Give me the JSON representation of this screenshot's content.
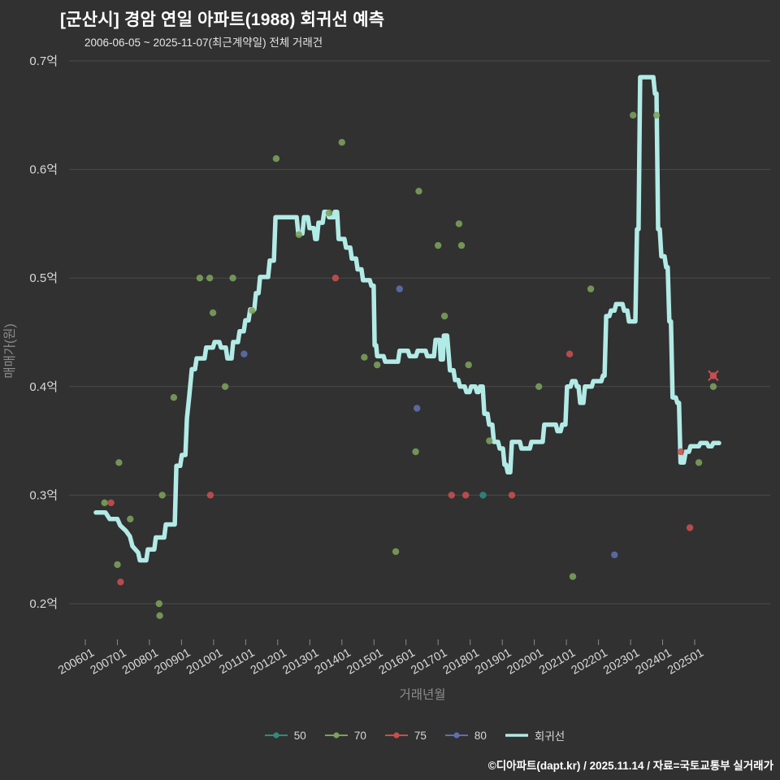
{
  "footer": "©디아파트(dapt.kr) / 2025.11.14 / 자료=국토교통부 실거래가",
  "chart_data": {
    "type": "line+scatter",
    "title": "[군산시] 경암 연일 아파트(1988) 회귀선 예측",
    "subtitle": "2006-06-05 ~ 2025-11-07(최근계약일) 전체 거래건",
    "xlabel": "거래년월",
    "ylabel": "매매가(원)",
    "y_unit": "억원",
    "x_unit": "decimal-year",
    "x_ticks": [
      "200601",
      "200701",
      "200801",
      "200901",
      "201001",
      "201101",
      "201201",
      "201301",
      "201401",
      "201501",
      "201601",
      "201701",
      "201801",
      "201901",
      "202001",
      "202101",
      "202201",
      "202301",
      "202401",
      "202501"
    ],
    "y_ticks": [
      "0.2억",
      "0.3억",
      "0.4억",
      "0.5억",
      "0.6억",
      "0.7억"
    ],
    "y_tick_values": [
      0.2,
      0.3,
      0.4,
      0.5,
      0.6,
      0.7
    ],
    "xlim": [
      2005.5,
      2026.35
    ],
    "ylim": [
      0.165,
      0.705
    ],
    "grid": "horizontal-only",
    "legend_position": "bottom-center",
    "colors": {
      "background": "#313131",
      "grid": "#4b4b4b",
      "tick": "#8a8a8a",
      "tick_label": "#d9d9d9",
      "axis_title": "#8c8c8c",
      "title": "#ffffff",
      "footer": "#ffffff"
    },
    "legend": [
      {
        "label": "50",
        "color": "#2e8b80",
        "type": "scatter"
      },
      {
        "label": "70",
        "color": "#7ca05c",
        "type": "scatter"
      },
      {
        "label": "75",
        "color": "#c94f4e",
        "type": "scatter"
      },
      {
        "label": "80",
        "color": "#5f6fae",
        "type": "scatter"
      },
      {
        "label": "회귀선",
        "color": "#b2eae6",
        "type": "line"
      }
    ],
    "regression": {
      "name": "회귀선",
      "color": "#b2eae6",
      "points": [
        [
          2006.33,
          0.284
        ],
        [
          2006.63,
          0.284
        ],
        [
          2006.76,
          0.278
        ],
        [
          2007.0,
          0.278
        ],
        [
          2007.09,
          0.272
        ],
        [
          2007.27,
          0.267
        ],
        [
          2007.39,
          0.262
        ],
        [
          2007.47,
          0.253
        ],
        [
          2007.65,
          0.247
        ],
        [
          2007.7,
          0.24
        ],
        [
          2007.9,
          0.24
        ],
        [
          2007.95,
          0.25
        ],
        [
          2008.15,
          0.25
        ],
        [
          2008.2,
          0.261
        ],
        [
          2008.46,
          0.261
        ],
        [
          2008.51,
          0.273
        ],
        [
          2008.79,
          0.273
        ],
        [
          2008.84,
          0.327
        ],
        [
          2008.96,
          0.327
        ],
        [
          2009.01,
          0.337
        ],
        [
          2009.12,
          0.337
        ],
        [
          2009.17,
          0.371
        ],
        [
          2009.24,
          0.391
        ],
        [
          2009.32,
          0.416
        ],
        [
          2009.42,
          0.416
        ],
        [
          2009.47,
          0.426
        ],
        [
          2009.72,
          0.426
        ],
        [
          2009.77,
          0.436
        ],
        [
          2009.98,
          0.436
        ],
        [
          2010.03,
          0.441
        ],
        [
          2010.18,
          0.441
        ],
        [
          2010.23,
          0.436
        ],
        [
          2010.38,
          0.436
        ],
        [
          2010.43,
          0.426
        ],
        [
          2010.56,
          0.426
        ],
        [
          2010.61,
          0.441
        ],
        [
          2010.76,
          0.441
        ],
        [
          2010.81,
          0.451
        ],
        [
          2010.94,
          0.451
        ],
        [
          2010.99,
          0.461
        ],
        [
          2011.09,
          0.461
        ],
        [
          2011.14,
          0.471
        ],
        [
          2011.27,
          0.471
        ],
        [
          2011.32,
          0.486
        ],
        [
          2011.4,
          0.486
        ],
        [
          2011.45,
          0.501
        ],
        [
          2011.7,
          0.501
        ],
        [
          2011.75,
          0.516
        ],
        [
          2011.88,
          0.516
        ],
        [
          2011.93,
          0.556
        ],
        [
          2012.59,
          0.556
        ],
        [
          2012.64,
          0.541
        ],
        [
          2012.77,
          0.541
        ],
        [
          2012.82,
          0.556
        ],
        [
          2012.94,
          0.556
        ],
        [
          2012.99,
          0.546
        ],
        [
          2013.12,
          0.546
        ],
        [
          2013.17,
          0.536
        ],
        [
          2013.22,
          0.536
        ],
        [
          2013.27,
          0.551
        ],
        [
          2013.4,
          0.551
        ],
        [
          2013.45,
          0.561
        ],
        [
          2013.55,
          0.561
        ],
        [
          2013.6,
          0.556
        ],
        [
          2013.75,
          0.556
        ],
        [
          2013.78,
          0.561
        ],
        [
          2013.85,
          0.561
        ],
        [
          2013.9,
          0.536
        ],
        [
          2014.08,
          0.536
        ],
        [
          2014.13,
          0.528
        ],
        [
          2014.26,
          0.528
        ],
        [
          2014.31,
          0.518
        ],
        [
          2014.44,
          0.518
        ],
        [
          2014.49,
          0.508
        ],
        [
          2014.61,
          0.508
        ],
        [
          2014.66,
          0.498
        ],
        [
          2014.87,
          0.498
        ],
        [
          2014.92,
          0.493
        ],
        [
          2014.99,
          0.493
        ],
        [
          2015.02,
          0.438
        ],
        [
          2015.07,
          0.438
        ],
        [
          2015.1,
          0.428
        ],
        [
          2015.3,
          0.428
        ],
        [
          2015.35,
          0.423
        ],
        [
          2015.75,
          0.423
        ],
        [
          2015.8,
          0.433
        ],
        [
          2016.06,
          0.433
        ],
        [
          2016.11,
          0.428
        ],
        [
          2016.31,
          0.428
        ],
        [
          2016.36,
          0.433
        ],
        [
          2016.61,
          0.433
        ],
        [
          2016.66,
          0.428
        ],
        [
          2016.87,
          0.428
        ],
        [
          2016.92,
          0.443
        ],
        [
          2017.05,
          0.443
        ],
        [
          2017.08,
          0.425
        ],
        [
          2017.15,
          0.425
        ],
        [
          2017.18,
          0.447
        ],
        [
          2017.28,
          0.447
        ],
        [
          2017.37,
          0.415
        ],
        [
          2017.48,
          0.415
        ],
        [
          2017.53,
          0.406
        ],
        [
          2017.63,
          0.406
        ],
        [
          2017.68,
          0.4
        ],
        [
          2017.83,
          0.4
        ],
        [
          2017.88,
          0.395
        ],
        [
          2017.98,
          0.395
        ],
        [
          2018.03,
          0.4
        ],
        [
          2018.16,
          0.4
        ],
        [
          2018.21,
          0.395
        ],
        [
          2018.26,
          0.395
        ],
        [
          2018.31,
          0.4
        ],
        [
          2018.39,
          0.4
        ],
        [
          2018.44,
          0.375
        ],
        [
          2018.54,
          0.375
        ],
        [
          2018.59,
          0.365
        ],
        [
          2018.69,
          0.365
        ],
        [
          2018.74,
          0.349
        ],
        [
          2018.87,
          0.349
        ],
        [
          2018.92,
          0.343
        ],
        [
          2019.02,
          0.343
        ],
        [
          2019.07,
          0.328
        ],
        [
          2019.12,
          0.328
        ],
        [
          2019.17,
          0.321
        ],
        [
          2019.25,
          0.321
        ],
        [
          2019.3,
          0.349
        ],
        [
          2019.55,
          0.349
        ],
        [
          2019.6,
          0.343
        ],
        [
          2019.86,
          0.343
        ],
        [
          2019.91,
          0.349
        ],
        [
          2020.26,
          0.349
        ],
        [
          2020.31,
          0.365
        ],
        [
          2020.67,
          0.365
        ],
        [
          2020.72,
          0.359
        ],
        [
          2020.82,
          0.359
        ],
        [
          2020.87,
          0.365
        ],
        [
          2020.97,
          0.365
        ],
        [
          2021.02,
          0.4
        ],
        [
          2021.13,
          0.4
        ],
        [
          2021.18,
          0.405
        ],
        [
          2021.28,
          0.405
        ],
        [
          2021.33,
          0.4
        ],
        [
          2021.38,
          0.4
        ],
        [
          2021.43,
          0.385
        ],
        [
          2021.53,
          0.385
        ],
        [
          2021.58,
          0.4
        ],
        [
          2021.79,
          0.4
        ],
        [
          2021.84,
          0.405
        ],
        [
          2022.09,
          0.405
        ],
        [
          2022.14,
          0.41
        ],
        [
          2022.19,
          0.41
        ],
        [
          2022.24,
          0.465
        ],
        [
          2022.34,
          0.465
        ],
        [
          2022.39,
          0.47
        ],
        [
          2022.5,
          0.47
        ],
        [
          2022.55,
          0.476
        ],
        [
          2022.75,
          0.476
        ],
        [
          2022.8,
          0.47
        ],
        [
          2022.9,
          0.47
        ],
        [
          2022.95,
          0.46
        ],
        [
          2023.15,
          0.46
        ],
        [
          2023.2,
          0.545
        ],
        [
          2023.25,
          0.545
        ],
        [
          2023.3,
          0.685
        ],
        [
          2023.71,
          0.685
        ],
        [
          2023.76,
          0.67
        ],
        [
          2023.81,
          0.67
        ],
        [
          2023.86,
          0.545
        ],
        [
          2023.91,
          0.545
        ],
        [
          2023.96,
          0.52
        ],
        [
          2024.06,
          0.52
        ],
        [
          2024.11,
          0.51
        ],
        [
          2024.16,
          0.51
        ],
        [
          2024.21,
          0.46
        ],
        [
          2024.26,
          0.46
        ],
        [
          2024.31,
          0.39
        ],
        [
          2024.41,
          0.39
        ],
        [
          2024.46,
          0.385
        ],
        [
          2024.51,
          0.385
        ],
        [
          2024.56,
          0.33
        ],
        [
          2024.66,
          0.33
        ],
        [
          2024.72,
          0.34
        ],
        [
          2024.82,
          0.34
        ],
        [
          2024.87,
          0.345
        ],
        [
          2025.13,
          0.345
        ],
        [
          2025.18,
          0.348
        ],
        [
          2025.38,
          0.348
        ],
        [
          2025.43,
          0.345
        ],
        [
          2025.53,
          0.345
        ],
        [
          2025.58,
          0.348
        ],
        [
          2025.76,
          0.348
        ]
      ]
    },
    "scatter_series": [
      {
        "name": "50",
        "color": "#2e8b80",
        "points": [
          [
            2018.4,
            0.3
          ]
        ]
      },
      {
        "name": "70",
        "color": "#7ca05c",
        "points": [
          [
            2006.6,
            0.293
          ],
          [
            2007.0,
            0.236
          ],
          [
            2007.05,
            0.33
          ],
          [
            2007.4,
            0.278
          ],
          [
            2008.3,
            0.2
          ],
          [
            2008.32,
            0.189
          ],
          [
            2008.4,
            0.3
          ],
          [
            2008.76,
            0.39
          ],
          [
            2009.57,
            0.5
          ],
          [
            2009.88,
            0.5
          ],
          [
            2009.98,
            0.468
          ],
          [
            2010.36,
            0.4
          ],
          [
            2010.6,
            0.5
          ],
          [
            2011.2,
            0.47
          ],
          [
            2011.95,
            0.61
          ],
          [
            2012.66,
            0.54
          ],
          [
            2013.6,
            0.56
          ],
          [
            2014.0,
            0.625
          ],
          [
            2014.7,
            0.427
          ],
          [
            2015.1,
            0.42
          ],
          [
            2015.68,
            0.248
          ],
          [
            2016.3,
            0.34
          ],
          [
            2016.4,
            0.58
          ],
          [
            2017.0,
            0.53
          ],
          [
            2017.2,
            0.465
          ],
          [
            2017.65,
            0.55
          ],
          [
            2017.73,
            0.53
          ],
          [
            2017.95,
            0.42
          ],
          [
            2018.6,
            0.35
          ],
          [
            2020.14,
            0.4
          ],
          [
            2021.2,
            0.225
          ],
          [
            2021.76,
            0.49
          ],
          [
            2023.08,
            0.65
          ],
          [
            2023.81,
            0.65
          ],
          [
            2025.13,
            0.33
          ],
          [
            2025.58,
            0.4
          ]
        ]
      },
      {
        "name": "75",
        "color": "#c94f4e",
        "points": [
          [
            2006.8,
            0.293
          ],
          [
            2007.1,
            0.22
          ],
          [
            2009.9,
            0.3
          ],
          [
            2013.8,
            0.5
          ],
          [
            2017.42,
            0.3
          ],
          [
            2017.86,
            0.3
          ],
          [
            2019.3,
            0.3
          ],
          [
            2021.1,
            0.43
          ],
          [
            2024.57,
            0.34
          ],
          [
            2024.85,
            0.27
          ]
        ]
      },
      {
        "name": "80",
        "color": "#5f6fae",
        "points": [
          [
            2010.95,
            0.43
          ],
          [
            2015.8,
            0.49
          ],
          [
            2016.34,
            0.38
          ],
          [
            2022.5,
            0.245
          ]
        ]
      }
    ],
    "highlight": {
      "series": "75",
      "x": 2025.58,
      "y": 0.41,
      "color": "#c94f4e",
      "marker": "x"
    }
  }
}
